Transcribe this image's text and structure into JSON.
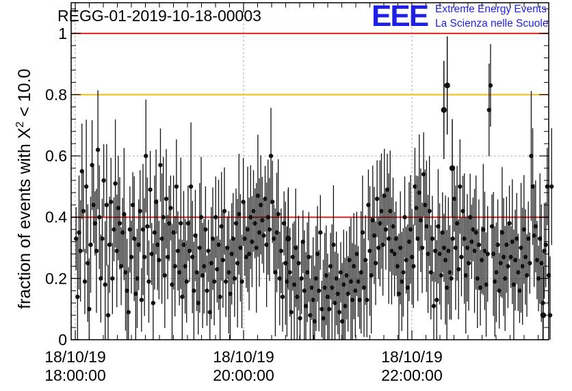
{
  "header": {
    "run_title": "REGG-01-2019-10-18-00003",
    "logo": {
      "letters": "EEE",
      "line1": "Extreme Energy Events",
      "line2": "La Scienza nelle Scuole",
      "color": "#1f1fe6"
    }
  },
  "chart_data": {
    "type": "scatter",
    "title": "REGG-01-2019-10-18-00003",
    "ylabel_parts": {
      "prefix": "fraction of events with ",
      "symbol": "Χ",
      "superscript": "2",
      "suffix": " < 10.0"
    },
    "ylim": [
      0,
      1.1
    ],
    "y_ticks": [
      0,
      0.2,
      0.4,
      0.6,
      0.8,
      1
    ],
    "y_tick_labels": [
      "0",
      "0.2",
      "0.4",
      "0.6",
      "0.8",
      "1"
    ],
    "x_range_hours": [
      0,
      2.845
    ],
    "x_ticks": [
      {
        "hour": 0,
        "date": "18/10/19",
        "time": "18:00:00"
      },
      {
        "hour": 1,
        "date": "18/10/19",
        "time": "20:00:00"
      },
      {
        "hour": 2,
        "date": "18/10/19",
        "time": "22:00:00"
      }
    ],
    "grid": true,
    "reference_lines": [
      {
        "y": 1.0,
        "color": "#e8201a"
      },
      {
        "y": 0.8,
        "color": "#f2b90f"
      },
      {
        "y": 0.4,
        "color": "#e8201a"
      }
    ],
    "series": [
      {
        "marker_color": "#111111",
        "points_description": "fraction values per time bin, with vertical error bars",
        "values": [
          0.33,
          0.14,
          0.35,
          0.29,
          0.55,
          0.42,
          0.19,
          0.5,
          0.25,
          0.1,
          0.31,
          0.57,
          0.44,
          0.38,
          0.29,
          0.62,
          0.4,
          0.2,
          0.33,
          0.52,
          0.18,
          0.44,
          0.08,
          0.31,
          0.45,
          0.2,
          0.36,
          0.51,
          0.29,
          0.43,
          0.38,
          0.24,
          0.35,
          0.41,
          0.22,
          0.16,
          0.09,
          0.36,
          0.27,
          0.44,
          0.33,
          0.15,
          0.2,
          0.31,
          0.42,
          0.13,
          0.36,
          0.27,
          0.6,
          0.37,
          0.19,
          0.49,
          0.28,
          0.12,
          0.35,
          0.45,
          0.31,
          0.26,
          0.57,
          0.33,
          0.4,
          0.21,
          0.46,
          0.27,
          0.38,
          0.43,
          0.18,
          0.35,
          0.24,
          0.5,
          0.29,
          0.22,
          0.38,
          0.14,
          0.31,
          0.24,
          0.19,
          0.38,
          0.29,
          0.5,
          0.27,
          0.16,
          0.34,
          0.22,
          0.12,
          0.3,
          0.4,
          0.21,
          0.24,
          0.36,
          0.16,
          0.29,
          0.09,
          0.25,
          0.33,
          0.19,
          0.4,
          0.23,
          0.31,
          0.14,
          0.37,
          0.26,
          0.42,
          0.19,
          0.3,
          0.22,
          0.15,
          0.28,
          0.33,
          0.2,
          0.38,
          0.25,
          0.41,
          0.3,
          0.19,
          0.45,
          0.33,
          0.27,
          0.36,
          0.28,
          0.4,
          0.32,
          0.42,
          0.38,
          0.3,
          0.47,
          0.35,
          0.44,
          0.39,
          0.34,
          0.46,
          0.31,
          0.4,
          0.36,
          0.6,
          0.45,
          0.33,
          0.22,
          0.35,
          0.41,
          0.2,
          0.29,
          0.14,
          0.38,
          0.25,
          0.19,
          0.33,
          0.22,
          0.09,
          0.27,
          0.18,
          0.3,
          0.14,
          0.25,
          0.07,
          0.2,
          0.32,
          0.16,
          0.11,
          0.22,
          0.27,
          0.08,
          0.17,
          0.13,
          0.06,
          0.2,
          0.28,
          0.16,
          0.35,
          0.1,
          0.07,
          0.17,
          0.21,
          0.14,
          0.1,
          0.24,
          0.17,
          0.31,
          0.12,
          0.2,
          0.15,
          0.09,
          0.22,
          0.06,
          0.18,
          0.11,
          0.21,
          0.15,
          0.26,
          0.19,
          0.13,
          0.24,
          0.16,
          0.28,
          0.19,
          0.13,
          0.22,
          0.35,
          0.17,
          0.26,
          0.13,
          0.44,
          0.29,
          0.21,
          0.39,
          0.34,
          0.25,
          0.46,
          0.3,
          0.38,
          0.42,
          0.31,
          0.47,
          0.36,
          0.49,
          0.33,
          0.42,
          0.29,
          0.37,
          0.28,
          0.33,
          0.24,
          0.15,
          0.3,
          0.19,
          0.22,
          0.4,
          0.26,
          0.17,
          0.32,
          0.36,
          0.27,
          0.24,
          0.5,
          0.43,
          0.33,
          0.48,
          0.39,
          0.3,
          0.54,
          0.44,
          0.37,
          0.28,
          0.42,
          0.22,
          0.33,
          0.11,
          0.29,
          0.13,
          0.37,
          0.28,
          0.21,
          0.35,
          0.3,
          0.26,
          0.17,
          0.29,
          0.22,
          0.2,
          0.33,
          0.46,
          0.3,
          0.38,
          0.23,
          0.5,
          0.27,
          0.42,
          0.33,
          0.21,
          0.3,
          0.25,
          0.4,
          0.32,
          0.36,
          0.29,
          0.35,
          0.2,
          0.31,
          0.17,
          0.26,
          0.36,
          0.29,
          0.18,
          0.28,
          0.75,
          0.83,
          0.37,
          0.28,
          0.19,
          0.22,
          0.31,
          0.16,
          0.25,
          0.35,
          0.27,
          0.2,
          0.31,
          0.24,
          0.38,
          0.27,
          0.32,
          0.18,
          0.26,
          0.33,
          0.22,
          0.16,
          0.3,
          0.24,
          0.36,
          0.27,
          0.21,
          0.33,
          0.25,
          0.6,
          0.5,
          0.34,
          0.37,
          0.26,
          0.2,
          0.33,
          0.25,
          0.12,
          0.29,
          0.31,
          0.5,
          0.21,
          0.08,
          0.5
        ],
        "highlight_points": [
          {
            "hour": 1.265,
            "y": 0.33
          },
          {
            "hour": 2.19,
            "y": 0.75
          },
          {
            "hour": 2.21,
            "y": 0.83
          },
          {
            "hour": 2.24,
            "y": 0.56
          },
          {
            "hour": 2.78,
            "y": 0.08
          }
        ]
      }
    ]
  }
}
